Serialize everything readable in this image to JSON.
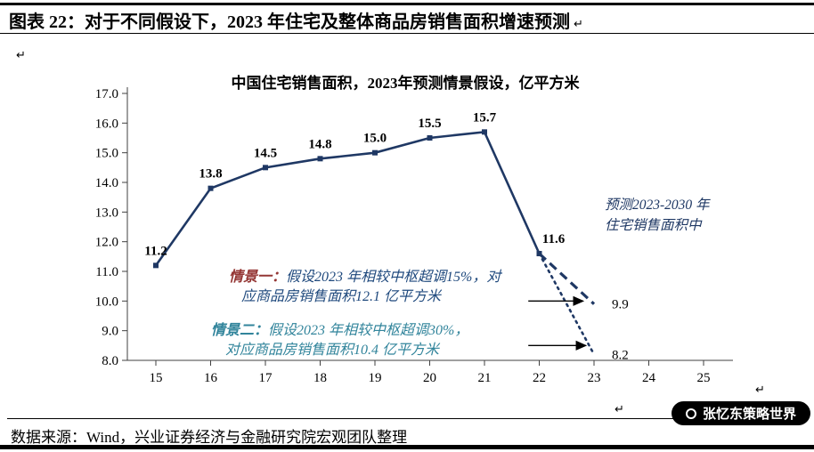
{
  "header": {
    "title": "图表 22：对于不同假设下，2023 年住宅及整体商品房销售面积增速预测"
  },
  "chart_data": {
    "type": "line",
    "title": "中国住宅销售面积，2023年预测情景假设，亿平方米",
    "x": [
      15,
      16,
      17,
      18,
      19,
      20,
      21,
      22
    ],
    "values": [
      11.2,
      13.8,
      14.5,
      14.8,
      15.0,
      15.5,
      15.7,
      11.6
    ],
    "point_labels": [
      "11.2",
      "13.8",
      "14.5",
      "14.8",
      "15.0",
      "15.5",
      "15.7",
      "11.6"
    ],
    "projections": [
      {
        "scenario": "情景一",
        "style": "dashed",
        "x": [
          22,
          23
        ],
        "values": [
          11.6,
          9.9
        ],
        "end_label": "9.9"
      },
      {
        "scenario": "情景二",
        "style": "dotted",
        "x": [
          22,
          23
        ],
        "values": [
          11.6,
          8.2
        ],
        "end_label": "8.2"
      }
    ],
    "arrows": [
      {
        "from_x": 21.8,
        "to_x": 22.8,
        "y": 10.0
      },
      {
        "from_x": 21.8,
        "to_x": 22.85,
        "y": 8.5
      }
    ],
    "xlabel": "",
    "ylabel": "",
    "ylim": [
      8.0,
      17.0
    ],
    "xlim": [
      14.5,
      25.5
    ],
    "y_ticks": [
      "17.0",
      "16.0",
      "15.0",
      "14.0",
      "13.0",
      "12.0",
      "11.0",
      "10.0",
      "9.0",
      "8.0"
    ],
    "x_ticks": [
      "15",
      "16",
      "17",
      "18",
      "19",
      "20",
      "21",
      "22",
      "23",
      "24",
      "25"
    ],
    "grid": false,
    "legend": "none",
    "line_color": "#1F3864"
  },
  "annotations": {
    "forecast_note_line1": "预测2023-2030 年",
    "forecast_note_line2": "住宅销售面积中",
    "scenario1_label": "情景一：",
    "scenario1_text_line1": "假设2023 年相较中枢超调15%，对",
    "scenario1_text_line2": "应商品房销售面积12.1 亿平方米",
    "scenario2_label": "情景二：",
    "scenario2_text_line1": "假设2023 年相较中枢超调30%，",
    "scenario2_text_line2": "对应商品房销售面积10.4 亿平方米"
  },
  "footer": {
    "source": "数据来源：Wind，兴业证券经济与金融研究院宏观团队整理"
  },
  "badge": {
    "text": "张忆东策略世界"
  },
  "marks": {
    "return_symbol": "↵"
  },
  "colors": {
    "line": "#1F3864",
    "scenario1_label": "#943634",
    "scenario1_text": "#1F497D",
    "scenario2": "#31849B",
    "annotation": "#1F3864"
  }
}
